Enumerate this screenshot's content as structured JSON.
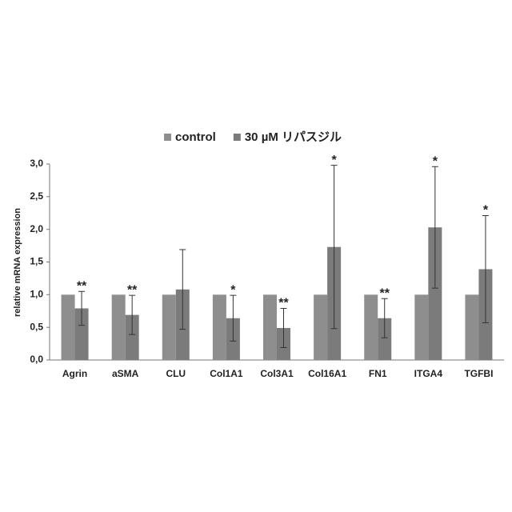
{
  "chart_data": {
    "type": "bar",
    "y_label": "relative mRNA expression",
    "categories": [
      "Agrin",
      "aSMA",
      "CLU",
      "Col1A1",
      "Col3A1",
      "Col16A1",
      "FN1",
      "ITGA4",
      "TGFBI"
    ],
    "series": [
      {
        "name": "control",
        "color": "#8e8e8e",
        "values": [
          1.0,
          1.0,
          1.0,
          1.0,
          1.0,
          1.0,
          1.0,
          1.0,
          1.0
        ]
      },
      {
        "name": "30 µM  リパスジル",
        "color": "#7b7b7b",
        "values": [
          0.79,
          0.69,
          1.08,
          0.64,
          0.49,
          1.73,
          0.64,
          2.03,
          1.39
        ],
        "errors": [
          0.26,
          0.3,
          0.61,
          0.35,
          0.3,
          1.25,
          0.3,
          0.93,
          0.82
        ]
      }
    ],
    "annotations": [
      "**",
      "**",
      null,
      "*",
      "**",
      "*",
      "**",
      "*",
      "*"
    ],
    "ylim": [
      0,
      3
    ],
    "yticks": [
      {
        "value": 0,
        "label": "0,0"
      },
      {
        "value": 0.5,
        "label": "0,5"
      },
      {
        "value": 1,
        "label": "1,0"
      },
      {
        "value": 1.5,
        "label": "1,5"
      },
      {
        "value": 2,
        "label": "2,0"
      },
      {
        "value": 2.5,
        "label": "2,5"
      },
      {
        "value": 3,
        "label": "3,0"
      }
    ],
    "grid": false,
    "legend": "top"
  }
}
